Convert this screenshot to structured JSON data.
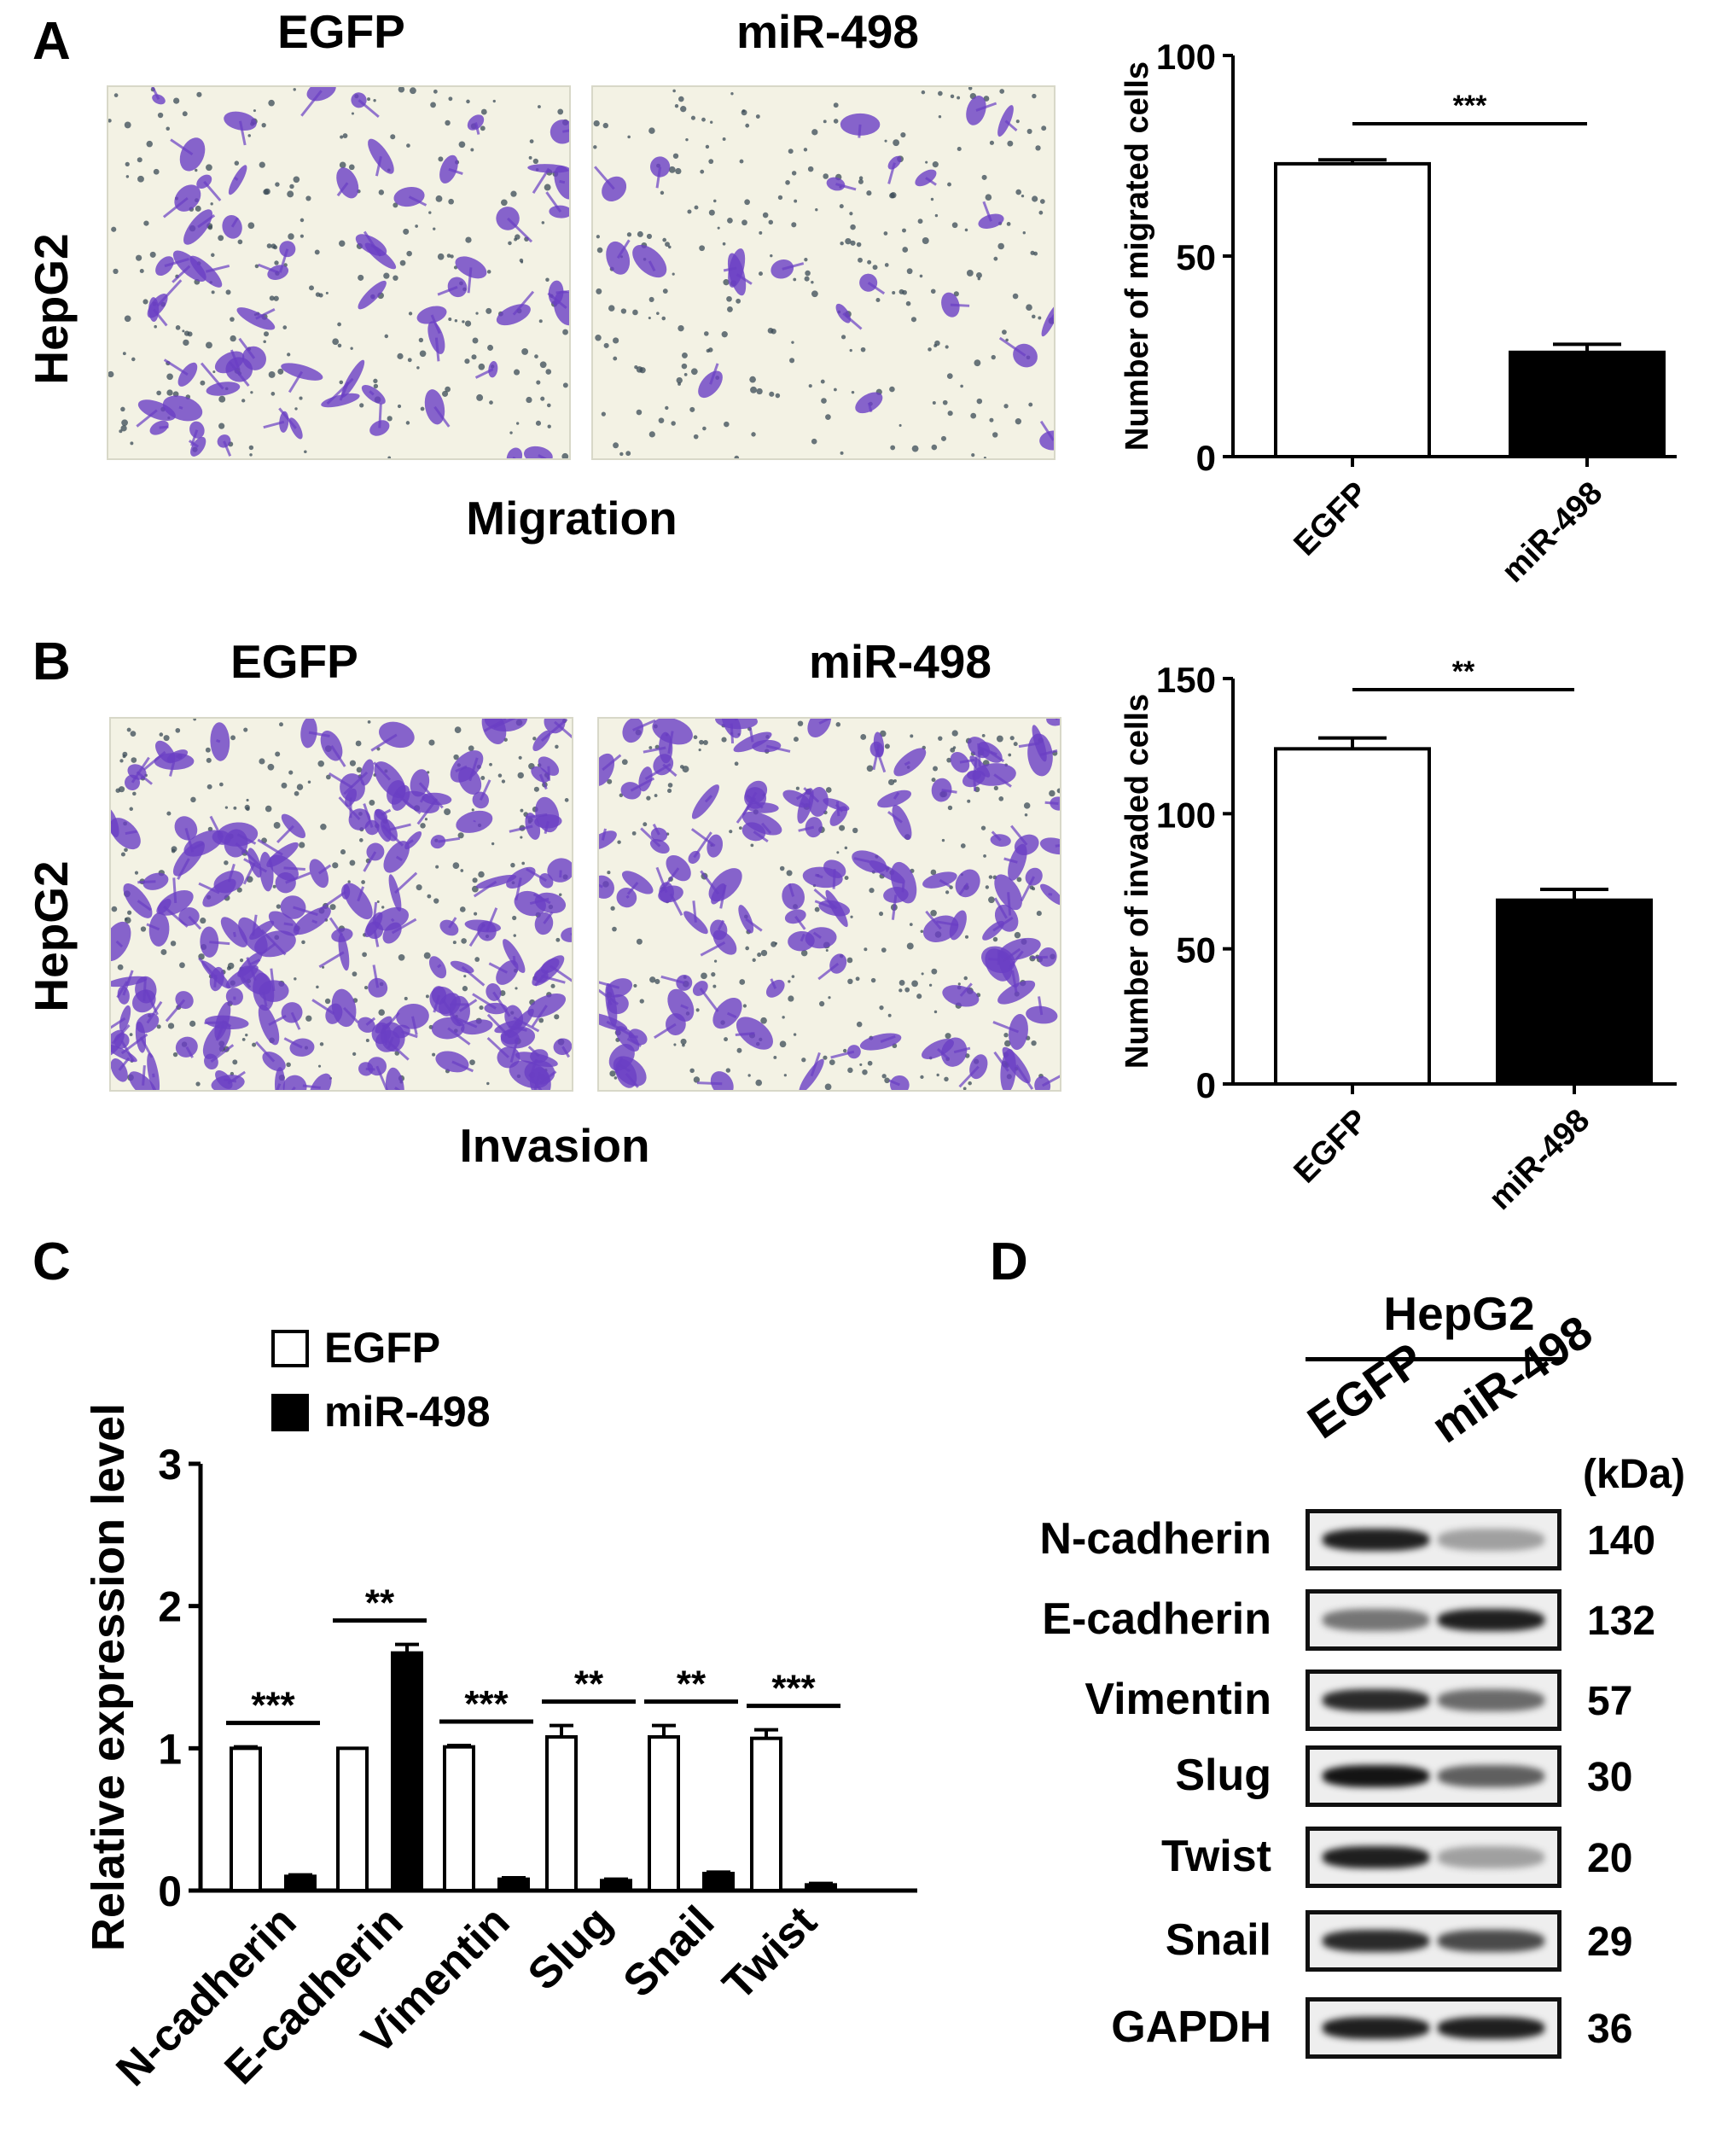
{
  "panels": {
    "A": {
      "letter": "A",
      "row_label": "HepG2",
      "col_labels": [
        "EGFP",
        "miR-498"
      ],
      "caption": "Migration"
    },
    "B": {
      "letter": "B",
      "row_label": "HepG2",
      "col_labels": [
        "EGFP",
        "miR-498"
      ],
      "caption": "Invasion"
    },
    "C": {
      "letter": "C"
    },
    "D": {
      "letter": "D"
    }
  },
  "chart_data": [
    {
      "id": "A",
      "type": "bar",
      "categories": [
        "EGFP",
        "miR-498"
      ],
      "values": [
        73,
        26
      ],
      "errors": [
        1,
        2
      ],
      "fills": [
        "#ffffff",
        "#000000"
      ],
      "ylabel": "Number of migrated cells",
      "ylim": [
        0,
        100
      ],
      "yticks": [
        0,
        50,
        100
      ],
      "significance": "***"
    },
    {
      "id": "B",
      "type": "bar",
      "categories": [
        "EGFP",
        "miR-498"
      ],
      "values": [
        124,
        68
      ],
      "errors": [
        4,
        4
      ],
      "fills": [
        "#ffffff",
        "#000000"
      ],
      "ylabel": "Number of invaded cells",
      "ylim": [
        0,
        150
      ],
      "yticks": [
        0,
        50,
        100,
        150
      ],
      "significance": "**"
    },
    {
      "id": "C",
      "type": "bar",
      "categories": [
        "N-cadherin",
        "E-cadherin",
        "Vimentin",
        "Slug",
        "Snail",
        "Twist"
      ],
      "series": [
        {
          "name": "EGFP",
          "values": [
            1.0,
            1.0,
            1.01,
            1.08,
            1.08,
            1.07
          ],
          "errors": [
            0.01,
            0.0,
            0.01,
            0.08,
            0.08,
            0.06
          ],
          "fill": "#ffffff"
        },
        {
          "name": "miR-498",
          "values": [
            0.1,
            1.67,
            0.08,
            0.07,
            0.12,
            0.04
          ],
          "errors": [
            0.01,
            0.06,
            0.01,
            0.01,
            0.01,
            0.01
          ],
          "fill": "#000000"
        }
      ],
      "significance": [
        "***",
        "**",
        "***",
        "**",
        "**",
        "***"
      ],
      "ylabel": "Relative expression level",
      "ylim": [
        0,
        3
      ],
      "yticks": [
        0,
        1,
        2,
        3
      ],
      "legend": "top-left"
    }
  ],
  "western": {
    "title": "HepG2",
    "lanes": [
      "EGFP",
      "miR-498"
    ],
    "unit": "(kDa)",
    "rows": [
      {
        "protein": "N-cadherin",
        "kda": "140",
        "intensity": [
          0.95,
          0.35
        ]
      },
      {
        "protein": "E-cadherin",
        "kda": "132",
        "intensity": [
          0.55,
          0.95
        ]
      },
      {
        "protein": "Vimentin",
        "kda": "57",
        "intensity": [
          0.9,
          0.6
        ]
      },
      {
        "protein": "Slug",
        "kda": "30",
        "intensity": [
          1.0,
          0.65
        ]
      },
      {
        "protein": "Twist",
        "kda": "20",
        "intensity": [
          0.95,
          0.35
        ]
      },
      {
        "protein": "Snail",
        "kda": "29",
        "intensity": [
          0.9,
          0.75
        ]
      },
      {
        "protein": "GAPDH",
        "kda": "36",
        "intensity": [
          0.95,
          0.95
        ]
      }
    ]
  }
}
